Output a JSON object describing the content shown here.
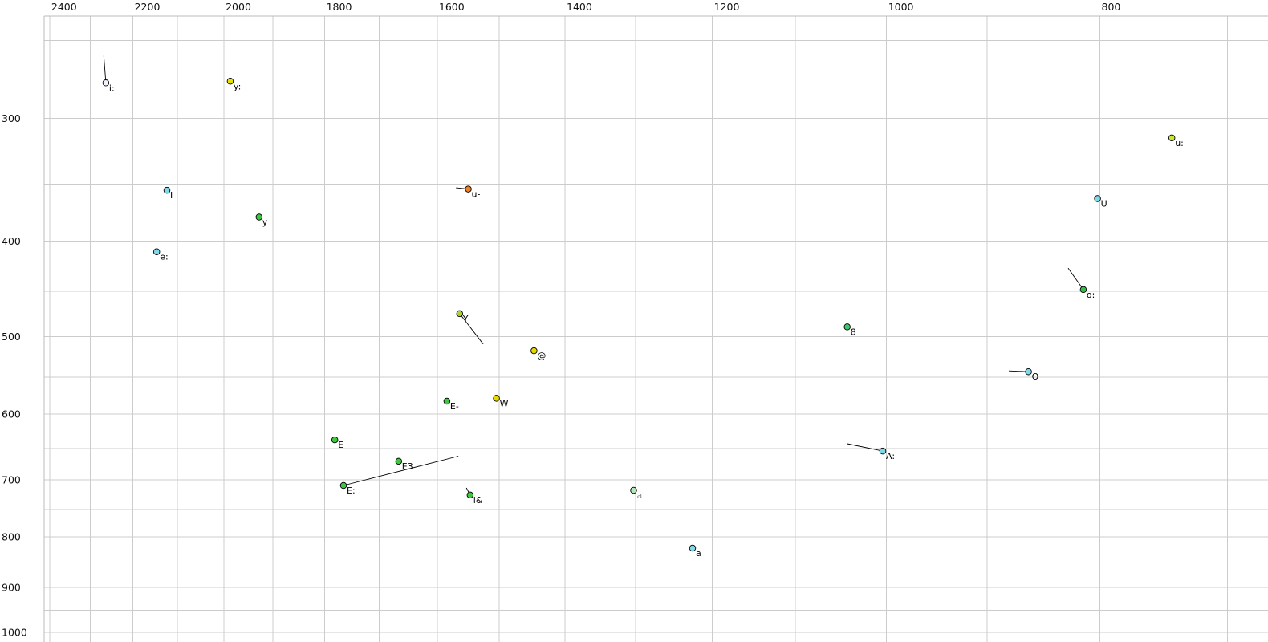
{
  "page": {
    "background": "#ffffff"
  },
  "chart_data": {
    "type": "scatter",
    "title": "",
    "description": "Vowel formant scatter plot: F2-like values on reversed log x-axis, F1-like values on reversed log y-axis, phoneme labels at each point",
    "x_axis": {
      "scale": "log",
      "reversed": true,
      "window": [
        2414,
        671
      ],
      "tick_labels": [
        "2400",
        "2200",
        "2000",
        "1800",
        "1600",
        "1400",
        "1200",
        "1000",
        "800"
      ],
      "tick_values": [
        2400,
        2200,
        2000,
        1800,
        1600,
        1400,
        1200,
        1000,
        800
      ],
      "grid_start": 700,
      "grid_end": 2400,
      "grid_step": 100
    },
    "y_axis": {
      "scale": "log",
      "reversed": true,
      "window": [
        236,
        1023
      ],
      "tick_labels": [
        "300",
        "400",
        "500",
        "600",
        "700",
        "800",
        "900",
        "1000"
      ],
      "tick_values": [
        300,
        400,
        500,
        600,
        700,
        800,
        900,
        1000
      ],
      "grid_start": 250,
      "grid_end": 1000,
      "grid_step": 50
    },
    "style": {
      "grid_color": "#cccccc",
      "border_color": "#bbbbbb",
      "point_radius": 3.8,
      "point_stroke": "#000000",
      "tail_color": "#000000",
      "tick_label_color": "#111111",
      "point_label_color": "#000000"
    },
    "points": [
      {
        "label": "i:",
        "f2": 2263,
        "f1": 276,
        "fill": "#f2f2ff",
        "tail": {
          "f2": 2268,
          "f1": 259
        }
      },
      {
        "label": "y:",
        "f2": 1987,
        "f1": 275,
        "fill": "#e8e000"
      },
      {
        "label": "u:",
        "f2": 742,
        "f1": 314,
        "fill": "#c9e52e"
      },
      {
        "label": "I",
        "f2": 2123,
        "f1": 355,
        "fill": "#80d8e8"
      },
      {
        "label": "u-",
        "f2": 1549,
        "f1": 354,
        "fill": "#f08020",
        "tail": {
          "f2": 1569,
          "f1": 353
        }
      },
      {
        "label": "U",
        "f2": 802,
        "f1": 362,
        "fill": "#80d8e8"
      },
      {
        "label": "y",
        "f2": 1928,
        "f1": 378,
        "fill": "#3fc63f"
      },
      {
        "label": "e:",
        "f2": 2146,
        "f1": 410,
        "fill": "#80d8e8"
      },
      {
        "label": "o:",
        "f2": 814,
        "f1": 448,
        "fill": "#35bb4a",
        "tail": {
          "f2": 827,
          "f1": 426
        }
      },
      {
        "label": "Y",
        "f2": 1563,
        "f1": 474,
        "fill": "#a8d428",
        "tail": {
          "f2": 1525,
          "f1": 509
        }
      },
      {
        "label": "8",
        "f2": 1042,
        "f1": 489,
        "fill": "#3cc96e"
      },
      {
        "label": "@",
        "f2": 1446,
        "f1": 517,
        "fill": "#e6d800"
      },
      {
        "label": "O",
        "f2": 862,
        "f1": 543,
        "fill": "#80d8e8",
        "tail": {
          "f2": 880,
          "f1": 542
        }
      },
      {
        "label": "E-",
        "f2": 1584,
        "f1": 582,
        "fill": "#3fc63f"
      },
      {
        "label": "W",
        "f2": 1504,
        "f1": 578,
        "fill": "#e6d800"
      },
      {
        "label": "E",
        "f2": 1781,
        "f1": 637,
        "fill": "#3fc63f"
      },
      {
        "label": "E3",
        "f2": 1666,
        "f1": 670,
        "fill": "#3fc63f"
      },
      {
        "label": "E:",
        "f2": 1765,
        "f1": 709,
        "fill": "#3fc63f",
        "tail": {
          "f2": 1565,
          "f1": 662
        }
      },
      {
        "label": "i&",
        "f2": 1546,
        "f1": 725,
        "fill": "#3fc63f",
        "tail": {
          "f2": 1552,
          "f1": 713
        }
      },
      {
        "label": "a",
        "f2": 1303,
        "f1": 717,
        "fill": "#b5e6b5",
        "label_color": "#8c8c8c"
      },
      {
        "label": "A:",
        "f2": 1004,
        "f1": 654,
        "fill": "#80d8e8",
        "tail": {
          "f2": 1042,
          "f1": 643
        }
      },
      {
        "label": "a",
        "f2": 1225,
        "f1": 821,
        "fill": "#80d8e8"
      }
    ]
  }
}
